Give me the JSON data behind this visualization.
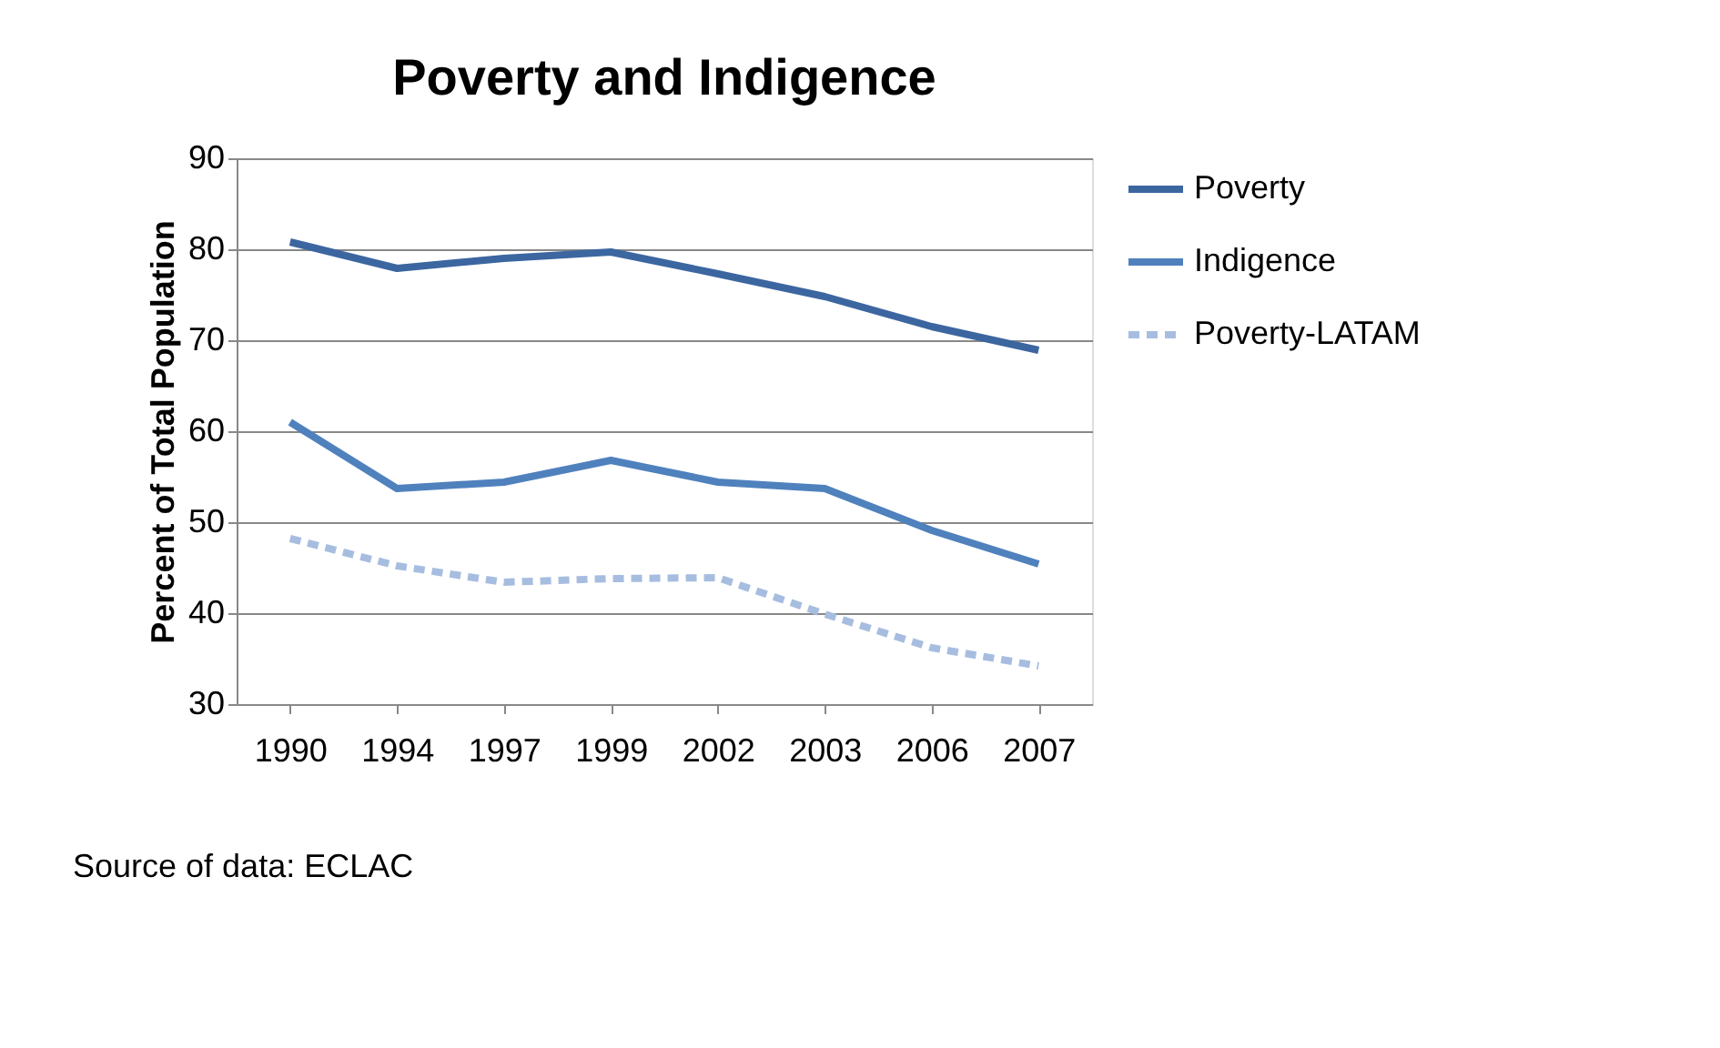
{
  "chart_data": {
    "type": "line",
    "title": "Poverty and Indigence",
    "ylabel": "Percent of Total Population",
    "categories": [
      "1990",
      "1994",
      "1997",
      "1999",
      "2002",
      "2003",
      "2006",
      "2007"
    ],
    "series": [
      {
        "name": "Poverty",
        "color": "#3c66a0",
        "line_style": "solid",
        "values": [
          80.8,
          77.9,
          79.0,
          79.7,
          77.3,
          74.8,
          71.5,
          68.9
        ]
      },
      {
        "name": "Indigence",
        "color": "#4f81bd",
        "line_style": "solid",
        "values": [
          61.0,
          53.7,
          54.4,
          56.8,
          54.4,
          53.7,
          49.1,
          45.4
        ]
      },
      {
        "name": "Poverty-LATAM",
        "color": "#a7bde0",
        "line_style": "dashed",
        "values": [
          48.2,
          45.2,
          43.4,
          43.8,
          43.9,
          39.9,
          36.2,
          34.2
        ]
      }
    ],
    "ylim": [
      30,
      90
    ],
    "yticks": [
      30,
      40,
      50,
      60,
      70,
      80,
      90
    ],
    "grid": "y",
    "legend": "right",
    "marker": "none",
    "annotations": [
      "Source of data: ECLAC"
    ]
  }
}
